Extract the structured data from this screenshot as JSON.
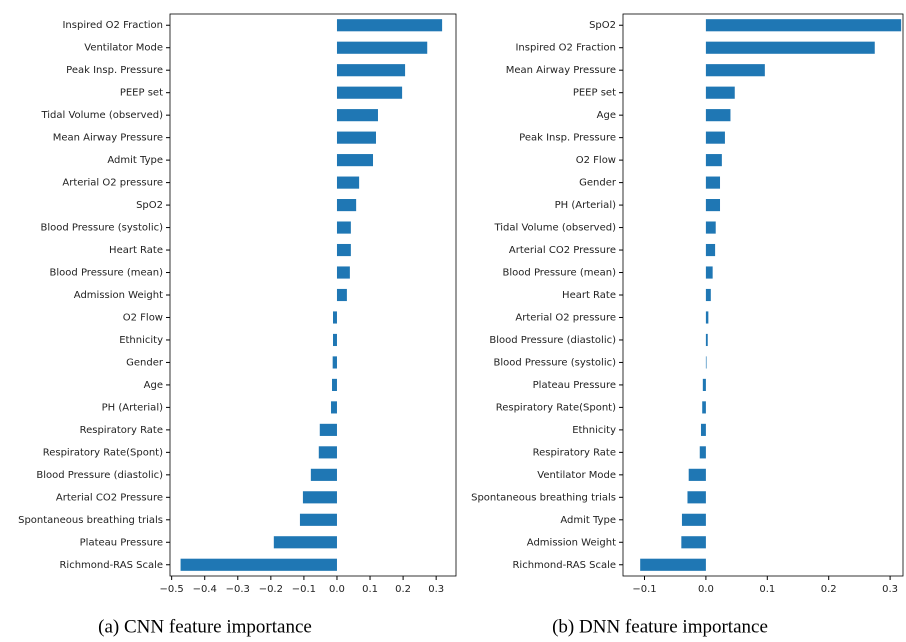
{
  "chart_data": [
    {
      "type": "barh",
      "caption": "(a) CNN feature importance",
      "color": "#1f77b4",
      "categories": [
        "Inspired O2 Fraction",
        "Ventilator Mode",
        "Peak Insp. Pressure",
        "PEEP set",
        "Tidal Volume (observed)",
        "Mean Airway Pressure",
        "Admit Type",
        "Arterial O2 pressure",
        "SpO2",
        "Blood Pressure (systolic)",
        "Heart Rate",
        "Blood Pressure (mean)",
        "Admission Weight",
        "O2 Flow",
        "Ethnicity",
        "Gender",
        "Age",
        "PH (Arterial)",
        "Respiratory Rate",
        "Respiratory Rate(Spont)",
        "Blood Pressure (diastolic)",
        "Arterial CO2 Pressure",
        "Spontaneous breathing trials",
        "Plateau Pressure",
        "Richmond-RAS Scale"
      ],
      "values": [
        0.318,
        0.273,
        0.206,
        0.197,
        0.124,
        0.118,
        0.109,
        0.067,
        0.058,
        0.042,
        0.042,
        0.039,
        0.03,
        -0.012,
        -0.012,
        -0.013,
        -0.015,
        -0.018,
        -0.052,
        -0.055,
        -0.079,
        -0.103,
        -0.112,
        -0.191,
        -0.473
      ],
      "xlim": [
        -0.505,
        0.36
      ],
      "xticks": [
        {
          "value": -0.5,
          "label": "−0.5"
        },
        {
          "value": -0.4,
          "label": "−0.4"
        },
        {
          "value": -0.3,
          "label": "−0.3"
        },
        {
          "value": -0.2,
          "label": "−0.2"
        },
        {
          "value": -0.1,
          "label": "−0.1"
        },
        {
          "value": 0,
          "label": "0.0"
        },
        0.1,
        0.2,
        0.3
      ]
    },
    {
      "type": "barh",
      "caption": "(b) DNN feature importance",
      "color": "#1f77b4",
      "categories": [
        "SpO2",
        "Inspired O2 Fraction",
        "Mean Airway Pressure",
        "PEEP set",
        "Age",
        "Peak Insp. Pressure",
        "O2 Flow",
        "Gender",
        "PH (Arterial)",
        "Tidal Volume (observed)",
        "Arterial CO2 Pressure",
        "Blood Pressure (mean)",
        "Heart Rate",
        "Arterial O2 pressure",
        "Blood Pressure (diastolic)",
        "Blood Pressure (systolic)",
        "Plateau Pressure",
        "Respiratory Rate(Spont)",
        "Ethnicity",
        "Respiratory Rate",
        "Ventilator Mode",
        "Spontaneous breathing trials",
        "Admit Type",
        "Admission Weight",
        "Richmond-RAS Scale"
      ],
      "values": [
        0.318,
        0.275,
        0.096,
        0.047,
        0.04,
        0.031,
        0.026,
        0.023,
        0.023,
        0.016,
        0.015,
        0.011,
        0.008,
        0.004,
        0.003,
        0.001,
        -0.005,
        -0.006,
        -0.008,
        -0.01,
        -0.028,
        -0.03,
        -0.039,
        -0.04,
        -0.107
      ],
      "xlim": [
        -0.135,
        0.321
      ],
      "xticks": [
        {
          "value": -0.1,
          "label": "−0.1"
        },
        {
          "value": 0,
          "label": "0.0"
        },
        0.1,
        0.2,
        0.3
      ]
    }
  ]
}
